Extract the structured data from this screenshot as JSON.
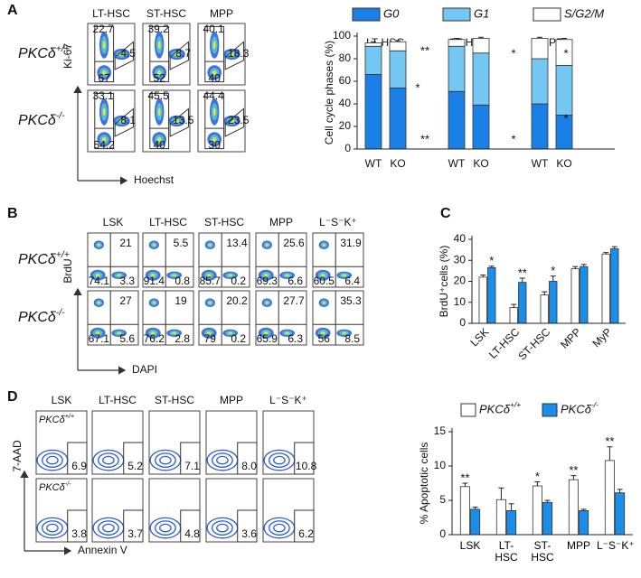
{
  "panel_letters": [
    "A",
    "B",
    "C",
    "D"
  ],
  "flow_A": {
    "columns": [
      "LT-HSC",
      "ST-HSC",
      "MPP"
    ],
    "y_label": "Ki-67",
    "x_label": "Hoechst",
    "rows": [
      {
        "genotype": "PKCδ+/+",
        "plots": [
          [
            "22.7",
            "4.5",
            "67"
          ],
          [
            "39.2",
            "8.7",
            "52"
          ],
          [
            "40.1",
            "18.3",
            "40"
          ]
        ]
      },
      {
        "genotype": "PKCδ-/-",
        "plots": [
          [
            "33.1",
            "8.1",
            "54.2"
          ],
          [
            "45.5",
            "13.5",
            "40"
          ],
          [
            "44.4",
            "23.5",
            "30"
          ]
        ]
      }
    ]
  },
  "flow_B": {
    "columns": [
      "LSK",
      "LT-HSC",
      "ST-HSC",
      "MPP",
      "L⁻S⁻K⁺"
    ],
    "y_label": "BrdU",
    "x_label": "DAPI",
    "rows": [
      {
        "genotype": "PKCδ+/+",
        "plots": [
          [
            "21",
            "74.1",
            "3.3"
          ],
          [
            "5.5",
            "91.4",
            "0.8"
          ],
          [
            "13.4",
            "85.7",
            "0.2"
          ],
          [
            "25.6",
            "69.3",
            "6.6"
          ],
          [
            "31.9",
            "60.5",
            "6.4"
          ]
        ]
      },
      {
        "genotype": "PKCδ-/-",
        "plots": [
          [
            "27",
            "67.1",
            "5.6"
          ],
          [
            "19",
            "76.2",
            "2.8"
          ],
          [
            "20.2",
            "79",
            "0.2"
          ],
          [
            "27.7",
            "65.9",
            "6.3"
          ],
          [
            "35.3",
            "56",
            "8.5"
          ]
        ]
      }
    ]
  },
  "flow_D": {
    "columns": [
      "LSK",
      "LT-HSC",
      "ST-HSC",
      "MPP",
      "L⁻S⁻K⁺"
    ],
    "y_label": "7-AAD",
    "x_label": "Annexin V",
    "rows": [
      {
        "genotype": "PKCδ+/+",
        "plots": [
          [
            "6.9"
          ],
          [
            "5.2"
          ],
          [
            "7.1"
          ],
          [
            "8.0"
          ],
          [
            "10.8"
          ]
        ]
      },
      {
        "genotype": "PKCδ-/-",
        "plots": [
          [
            "3.8"
          ],
          [
            "3.7"
          ],
          [
            "4.8"
          ],
          [
            "3.6"
          ],
          [
            "6.2"
          ]
        ]
      }
    ]
  },
  "chart_data": [
    {
      "type": "stacked_bar",
      "y_label": "Cell cycle phases (%)",
      "categories": [
        "WT",
        "KO",
        "WT",
        "KO",
        "WT",
        "KO"
      ],
      "groups": [
        "LT-HSC",
        "ST-HSC",
        "MPP"
      ],
      "series": [
        {
          "name": "G0",
          "color": "#1a80e5",
          "values": [
            66,
            54,
            51,
            39,
            40,
            30
          ],
          "errors": [
            2,
            3,
            2,
            4,
            2,
            3
          ]
        },
        {
          "name": "G1",
          "color": "#74c7f2",
          "values": [
            25,
            33,
            40,
            46,
            40,
            44
          ],
          "errors": [
            2,
            3,
            3,
            2,
            2,
            2
          ]
        },
        {
          "name": "S/G2/M",
          "color": "#ffffff",
          "values": [
            3,
            8,
            6,
            13,
            18,
            23
          ],
          "errors": [
            1,
            1,
            1,
            1,
            1,
            1
          ]
        }
      ],
      "ylim": [
        0,
        100
      ],
      "yticks": [
        0,
        20,
        40,
        60,
        80,
        100
      ],
      "legend": "top",
      "annotations": [
        "**",
        "*",
        "**",
        "*",
        "*",
        "*",
        "*"
      ]
    },
    {
      "type": "grouped_bar",
      "y_label": "BrdU⁺cells (%)",
      "categories": [
        "LSK",
        "LT-HSC",
        "ST-HSC",
        "MPP",
        "MyP"
      ],
      "series": [
        {
          "color": "#ffffff",
          "values": [
            22,
            7.5,
            13.5,
            26,
            33
          ],
          "errors": [
            1,
            1.5,
            1.5,
            1,
            0.7
          ]
        },
        {
          "color": "#1a8ee8",
          "values": [
            26.5,
            19.5,
            20,
            27,
            35.5
          ],
          "errors": [
            0.7,
            2,
            2.5,
            1,
            1
          ]
        }
      ],
      "ylim": [
        0,
        40
      ],
      "yticks": [
        0,
        10,
        20,
        30,
        40
      ],
      "x_label_rotation": 45,
      "annotations": [
        "*",
        "**",
        "*"
      ]
    },
    {
      "type": "grouped_bar",
      "y_label": "% Apoptotic cells",
      "categories": [
        "LSK",
        "LT-\nHSC",
        "ST-\nHSC",
        "MPP",
        "L⁻S⁻K⁺"
      ],
      "series": [
        {
          "name": "PKCδ+/+",
          "color": "#ffffff",
          "values": [
            7,
            5.1,
            7.1,
            8,
            10.8
          ],
          "errors": [
            0.5,
            1.7,
            0.6,
            0.6,
            2
          ]
        },
        {
          "name": "PKCδ-/-",
          "color": "#1a8ee8",
          "values": [
            3.7,
            3.5,
            4.7,
            3.5,
            6.1
          ],
          "errors": [
            0.3,
            1,
            0.3,
            0.2,
            0.5
          ]
        }
      ],
      "ylim": [
        0,
        15
      ],
      "yticks": [
        0,
        5,
        10,
        15
      ],
      "legend": "top",
      "annotations": [
        "**",
        "*",
        "**",
        "**"
      ]
    }
  ]
}
